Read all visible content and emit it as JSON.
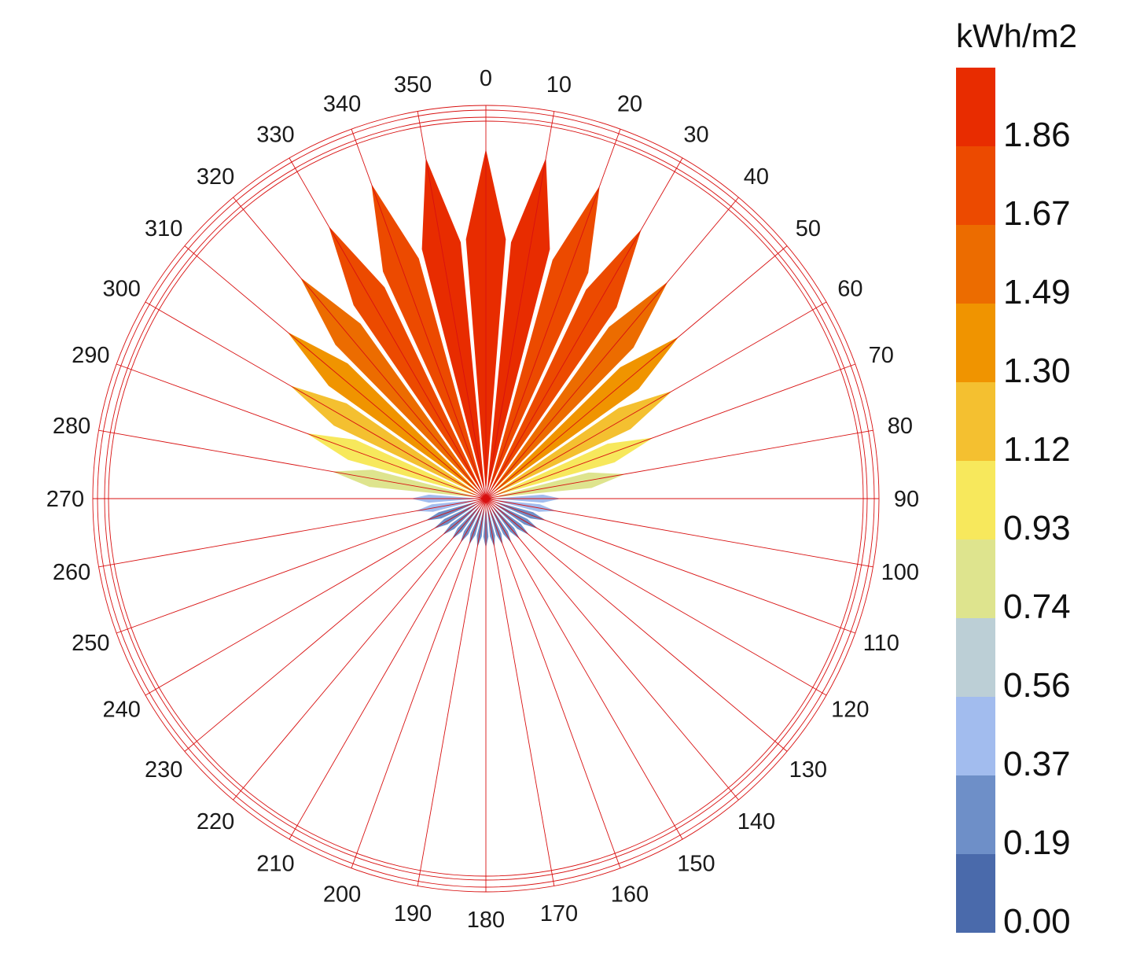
{
  "chart_data": {
    "type": "radial-rose",
    "title": "",
    "unit_label": "kWh/m2",
    "angle_labels": [
      "0",
      "10",
      "20",
      "30",
      "40",
      "50",
      "60",
      "70",
      "80",
      "90",
      "100",
      "110",
      "120",
      "130",
      "140",
      "150",
      "160",
      "170",
      "180",
      "190",
      "200",
      "210",
      "220",
      "230",
      "240",
      "250",
      "260",
      "270",
      "280",
      "290",
      "300",
      "310",
      "320",
      "330",
      "340",
      "350"
    ],
    "legend": {
      "ticks": [
        "1.86",
        "1.67",
        "1.49",
        "1.30",
        "1.12",
        "0.93",
        "0.74",
        "0.56",
        "0.37",
        "0.19",
        "0.00"
      ],
      "colors_top_to_bottom": [
        "#e82c00",
        "#ec4a00",
        "#ec6c00",
        "#f09400",
        "#f4c030",
        "#f7e85c",
        "#dee48e",
        "#bccfd6",
        "#a2bcee",
        "#6e8fc8",
        "#4a6aab"
      ]
    },
    "sectors": [
      {
        "angle": 0,
        "value": 1.91
      },
      {
        "angle": 10,
        "value": 1.89
      },
      {
        "angle": 20,
        "value": 1.82
      },
      {
        "angle": 30,
        "value": 1.7
      },
      {
        "angle": 40,
        "value": 1.55
      },
      {
        "angle": 50,
        "value": 1.38
      },
      {
        "angle": 60,
        "value": 1.18
      },
      {
        "angle": 70,
        "value": 0.98
      },
      {
        "angle": 80,
        "value": 0.78
      },
      {
        "angle": 90,
        "value": 0.42
      },
      {
        "angle": 100,
        "value": 0.4
      },
      {
        "angle": 110,
        "value": 0.36
      },
      {
        "angle": 120,
        "value": 0.34
      },
      {
        "angle": 130,
        "value": 0.32
      },
      {
        "angle": 140,
        "value": 0.3
      },
      {
        "angle": 150,
        "value": 0.29
      },
      {
        "angle": 160,
        "value": 0.28
      },
      {
        "angle": 170,
        "value": 0.28
      },
      {
        "angle": 180,
        "value": 0.28
      },
      {
        "angle": 190,
        "value": 0.28
      },
      {
        "angle": 200,
        "value": 0.28
      },
      {
        "angle": 210,
        "value": 0.29
      },
      {
        "angle": 220,
        "value": 0.3
      },
      {
        "angle": 230,
        "value": 0.32
      },
      {
        "angle": 240,
        "value": 0.34
      },
      {
        "angle": 250,
        "value": 0.36
      },
      {
        "angle": 260,
        "value": 0.4
      },
      {
        "angle": 270,
        "value": 0.42
      },
      {
        "angle": 280,
        "value": 0.86
      },
      {
        "angle": 290,
        "value": 1.05
      },
      {
        "angle": 300,
        "value": 1.24
      },
      {
        "angle": 310,
        "value": 1.42
      },
      {
        "angle": 320,
        "value": 1.58
      },
      {
        "angle": 330,
        "value": 1.72
      },
      {
        "angle": 340,
        "value": 1.83
      },
      {
        "angle": 350,
        "value": 1.89
      }
    ],
    "scale_max": 2.05,
    "grid": true
  }
}
